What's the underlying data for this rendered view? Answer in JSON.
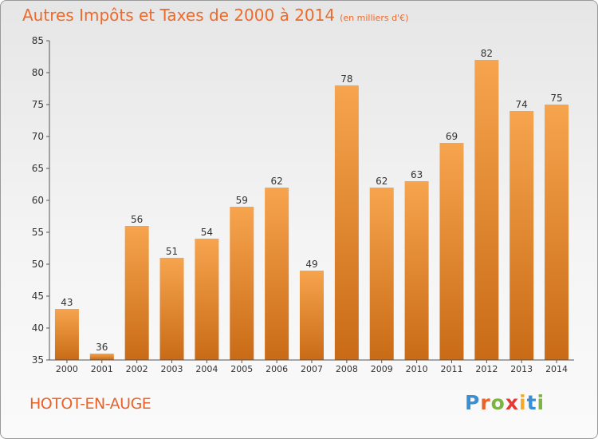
{
  "title": "Autres Impôts et Taxes de 2000 à 2014",
  "unit": "(en milliers d'€)",
  "commune": "HOTOT-EN-AUGE",
  "brand": "Proxiti",
  "brand_letters": [
    "P",
    "r",
    "o",
    "x",
    "i",
    "t",
    "i"
  ],
  "brand_colors": [
    "#3a8fd4",
    "#e8622a",
    "#7cb342",
    "#e53935",
    "#f9a825",
    "#3a8fd4",
    "#7cb342"
  ],
  "colors": {
    "bar_top": "#f7a44e",
    "bar_bottom": "#c96b16",
    "text": "#ee6a2a"
  },
  "chart_data": {
    "type": "bar",
    "title": "Autres Impôts et Taxes de 2000 à 2014",
    "categories": [
      "2000",
      "2001",
      "2002",
      "2003",
      "2004",
      "2005",
      "2006",
      "2007",
      "2008",
      "2009",
      "2010",
      "2011",
      "2012",
      "2013",
      "2014"
    ],
    "values": [
      43,
      36,
      56,
      51,
      54,
      59,
      62,
      49,
      78,
      62,
      63,
      69,
      82,
      74,
      75
    ],
    "ylim": [
      35,
      85
    ],
    "yticks": [
      35,
      40,
      45,
      50,
      55,
      60,
      65,
      70,
      75,
      80,
      85
    ],
    "grid": false,
    "legend": "none"
  }
}
